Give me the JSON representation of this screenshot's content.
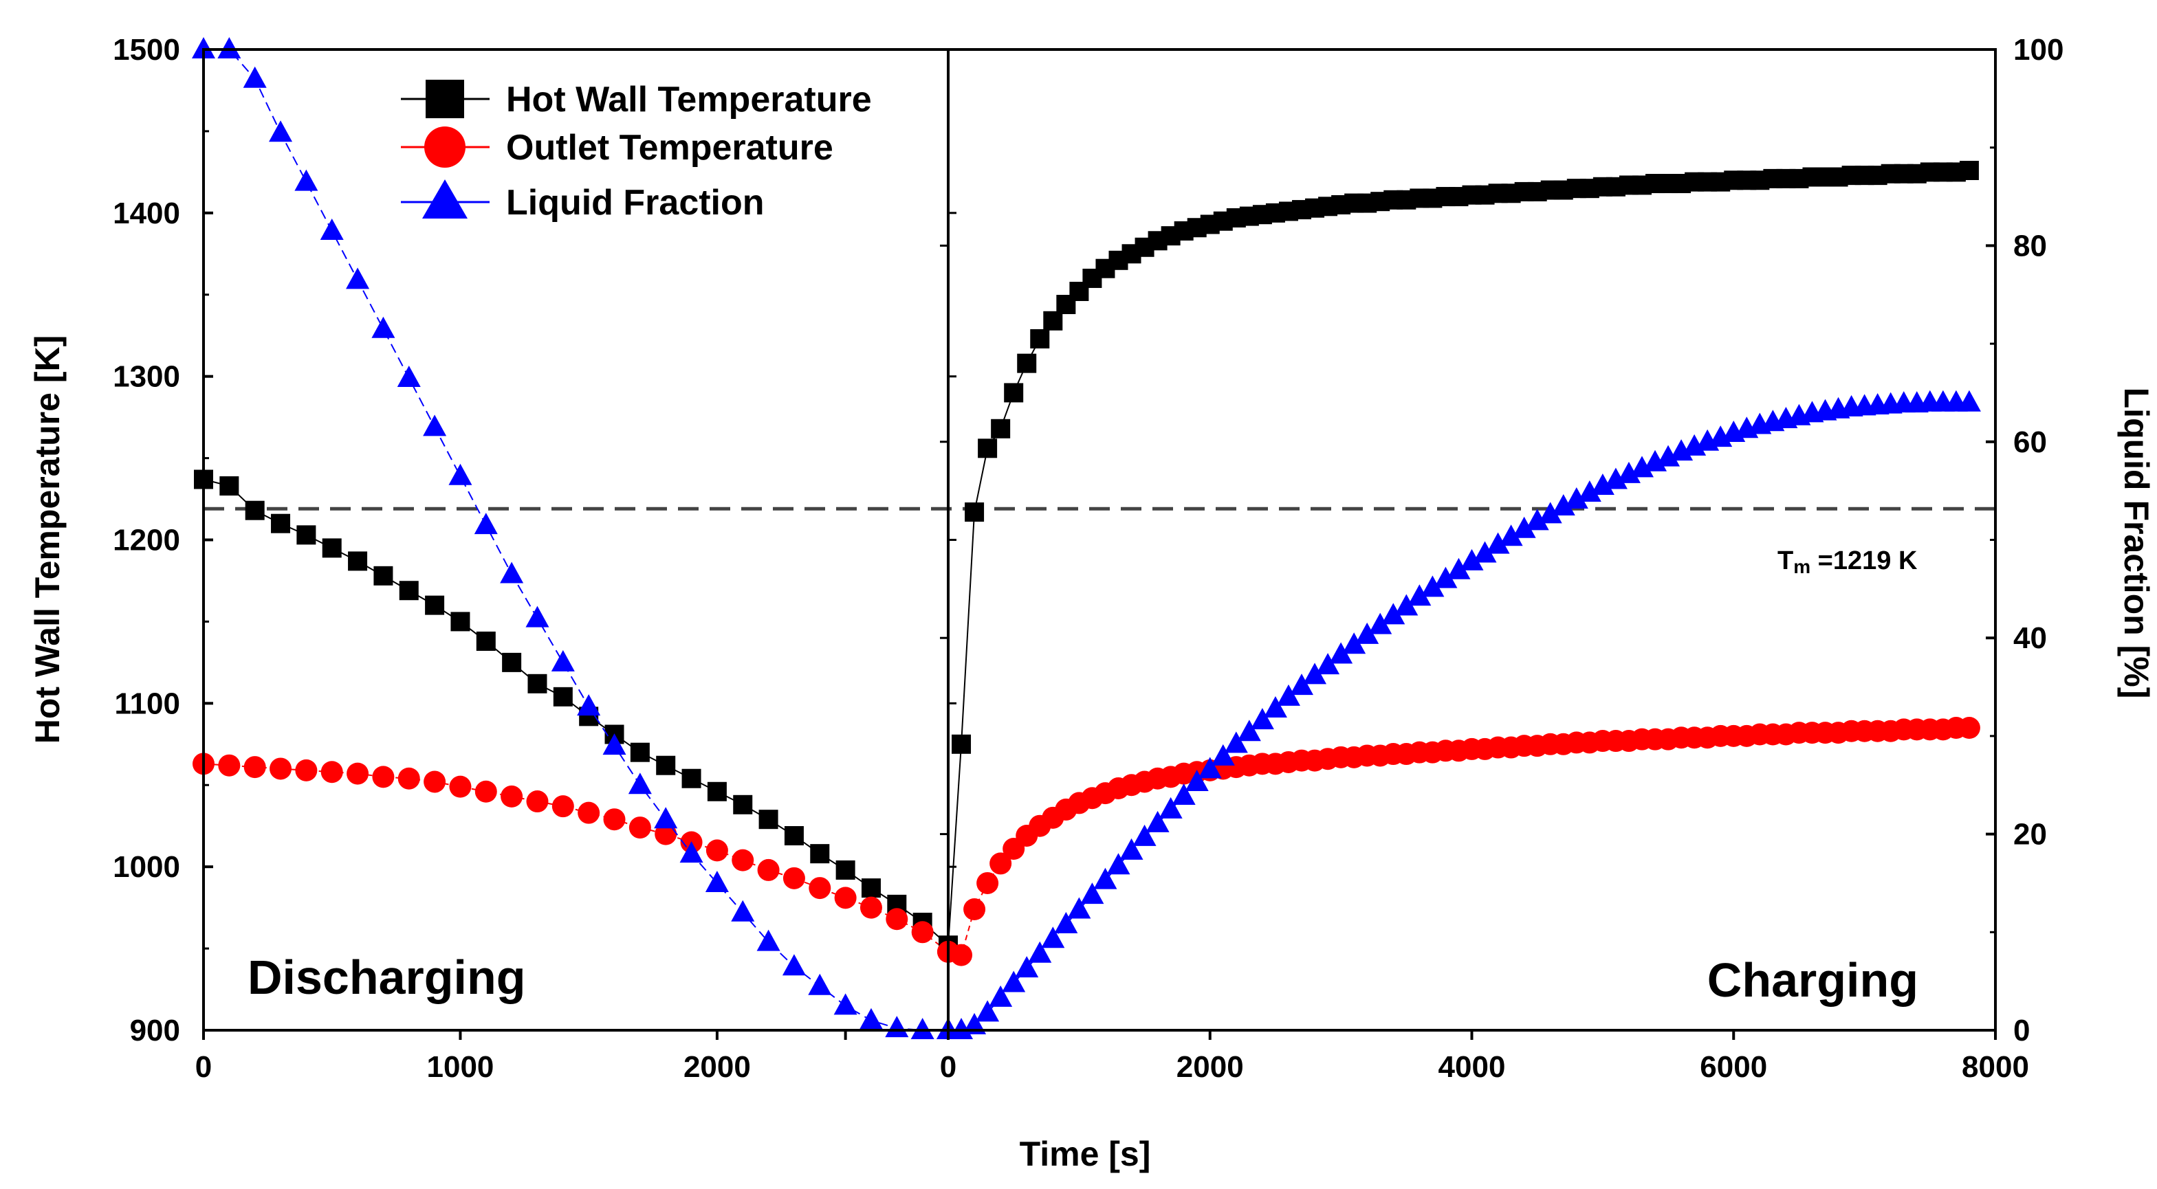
{
  "chart_data": {
    "type": "line",
    "title": "",
    "xlabel": "Time [s]",
    "ylabel": "Hot Wall Temperature [K]",
    "y2label": "Liquid Fraction [%]",
    "ylim": [
      900,
      1500
    ],
    "y2lim": [
      0,
      100
    ],
    "grid": false,
    "legend_position": "top-left",
    "y_ticks": [
      "900",
      "1000",
      "1100",
      "1200",
      "1300",
      "1400",
      "1500"
    ],
    "y2_ticks": [
      "0",
      "20",
      "40",
      "60",
      "80",
      "100"
    ],
    "reference_line": {
      "value": 1219,
      "style": "dashed",
      "label_prefix": "T",
      "label_sub": "m",
      "label_suffix": " =1219 K"
    },
    "panels": [
      {
        "name": "Discharging",
        "label": "Discharging",
        "xlim": [
          0,
          2900
        ],
        "x_ticks": [
          {
            "value": 0,
            "label": "0"
          },
          {
            "value": 1000,
            "label": "1000"
          },
          {
            "value": 2000,
            "label": "2000"
          },
          {
            "value": 2500,
            "label": ""
          }
        ],
        "series": [
          {
            "name": "Hot Wall Temperature",
            "color": "#000000",
            "marker": "square",
            "axis": "left",
            "x": [
              0,
              100,
              200,
              300,
              400,
              500,
              600,
              700,
              800,
              900,
              1000,
              1100,
              1200,
              1300,
              1400,
              1500,
              1600,
              1700,
              1800,
              1900,
              2000,
              2100,
              2200,
              2300,
              2400,
              2500,
              2600,
              2700,
              2800,
              2900
            ],
            "y": [
              1237,
              1233,
              1218,
              1210,
              1203,
              1195,
              1187,
              1178,
              1169,
              1160,
              1150,
              1138,
              1125,
              1112,
              1104,
              1092,
              1081,
              1070,
              1062,
              1054,
              1046,
              1038,
              1029,
              1019,
              1008,
              998,
              987,
              977,
              966,
              952
            ]
          },
          {
            "name": "Outlet Temperature",
            "color": "#ff0000",
            "marker": "circle",
            "axis": "left",
            "x": [
              0,
              100,
              200,
              300,
              400,
              500,
              600,
              700,
              800,
              900,
              1000,
              1100,
              1200,
              1300,
              1400,
              1500,
              1600,
              1700,
              1800,
              1900,
              2000,
              2100,
              2200,
              2300,
              2400,
              2500,
              2600,
              2700,
              2800,
              2900
            ],
            "y": [
              1063,
              1062,
              1061,
              1060,
              1059,
              1058,
              1057,
              1055,
              1054,
              1052,
              1049,
              1046,
              1043,
              1040,
              1037,
              1033,
              1029,
              1024,
              1020,
              1015,
              1010,
              1004,
              998,
              993,
              987,
              981,
              975,
              968,
              960,
              948
            ]
          },
          {
            "name": "Liquid Fraction",
            "color": "#0000ff",
            "marker": "triangle",
            "axis": "right",
            "x": [
              0,
              100,
              200,
              300,
              400,
              500,
              600,
              700,
              800,
              900,
              1000,
              1100,
              1200,
              1300,
              1400,
              1500,
              1600,
              1700,
              1800,
              1900,
              2000,
              2100,
              2200,
              2300,
              2400,
              2500,
              2600,
              2700,
              2800,
              2900
            ],
            "y": [
              100,
              100,
              97,
              91.5,
              86.5,
              81.5,
              76.5,
              71.5,
              66.5,
              61.5,
              56.5,
              51.5,
              46.5,
              42,
              37.5,
              33,
              29,
              25,
              21.5,
              18,
              15,
              12,
              9,
              6.5,
              4.5,
              2.5,
              1,
              0.2,
              0,
              0
            ]
          }
        ]
      },
      {
        "name": "Charging",
        "label": "Charging",
        "xlim": [
          0,
          8000
        ],
        "x_ticks": [
          {
            "value": 0,
            "label": "0"
          },
          {
            "value": 2000,
            "label": "2000"
          },
          {
            "value": 4000,
            "label": "4000"
          },
          {
            "value": 6000,
            "label": "6000"
          },
          {
            "value": 8000,
            "label": "8000"
          }
        ],
        "series": [
          {
            "name": "Hot Wall Temperature",
            "color": "#000000",
            "marker": "square",
            "axis": "left",
            "x": [
              0,
              100,
              200,
              300,
              400,
              500,
              600,
              700,
              800,
              900,
              1000,
              1100,
              1200,
              1300,
              1400,
              1500,
              1600,
              1700,
              1800,
              1900,
              2000,
              2100,
              2200,
              2300,
              2400,
              2500,
              2600,
              2700,
              2800,
              2900,
              3000,
              3100,
              3200,
              3300,
              3400,
              3500,
              3600,
              3700,
              3800,
              3900,
              4000,
              4100,
              4200,
              4300,
              4400,
              4500,
              4600,
              4700,
              4800,
              4900,
              5000,
              5100,
              5200,
              5300,
              5400,
              5500,
              5600,
              5700,
              5800,
              5900,
              6000,
              6100,
              6200,
              6300,
              6400,
              6500,
              6600,
              6700,
              6800,
              6900,
              7000,
              7100,
              7200,
              7300,
              7400,
              7500,
              7600,
              7700,
              7800
            ],
            "y": [
              952,
              1075,
              1217,
              1256,
              1268,
              1290,
              1308,
              1323,
              1334,
              1344,
              1352,
              1360,
              1366,
              1371,
              1375,
              1379,
              1383,
              1386,
              1389,
              1391,
              1393,
              1395,
              1397,
              1398,
              1399,
              1400,
              1401,
              1402,
              1403,
              1404,
              1405,
              1406,
              1406,
              1407,
              1408,
              1408,
              1409,
              1409,
              1410,
              1410,
              1411,
              1411,
              1412,
              1412,
              1413,
              1413,
              1414,
              1414,
              1415,
              1415,
              1416,
              1416,
              1417,
              1417,
              1418,
              1418,
              1418,
              1419,
              1419,
              1419,
              1420,
              1420,
              1420,
              1421,
              1421,
              1421,
              1422,
              1422,
              1422,
              1423,
              1423,
              1423,
              1424,
              1424,
              1424,
              1425,
              1425,
              1425,
              1426
            ]
          },
          {
            "name": "Outlet Temperature",
            "color": "#ff0000",
            "marker": "circle",
            "axis": "left",
            "x": [
              0,
              100,
              200,
              300,
              400,
              500,
              600,
              700,
              800,
              900,
              1000,
              1100,
              1200,
              1300,
              1400,
              1500,
              1600,
              1700,
              1800,
              1900,
              2000,
              2100,
              2200,
              2300,
              2400,
              2500,
              2600,
              2700,
              2800,
              2900,
              3000,
              3100,
              3200,
              3300,
              3400,
              3500,
              3600,
              3700,
              3800,
              3900,
              4000,
              4100,
              4200,
              4300,
              4400,
              4500,
              4600,
              4700,
              4800,
              4900,
              5000,
              5100,
              5200,
              5300,
              5400,
              5500,
              5600,
              5700,
              5800,
              5900,
              6000,
              6100,
              6200,
              6300,
              6400,
              6500,
              6600,
              6700,
              6800,
              6900,
              7000,
              7100,
              7200,
              7300,
              7400,
              7500,
              7600,
              7700,
              7800
            ],
            "y": [
              948,
              946,
              974,
              990,
              1002,
              1011,
              1019,
              1025,
              1030,
              1035,
              1039,
              1042,
              1045,
              1048,
              1050,
              1052,
              1054,
              1055,
              1057,
              1058,
              1059,
              1060,
              1061,
              1062,
              1063,
              1063,
              1064,
              1065,
              1065,
              1066,
              1067,
              1067,
              1068,
              1068,
              1069,
              1069,
              1070,
              1070,
              1071,
              1071,
              1072,
              1072,
              1073,
              1073,
              1074,
              1074,
              1075,
              1075,
              1076,
              1076,
              1077,
              1077,
              1077,
              1078,
              1078,
              1078,
              1079,
              1079,
              1079,
              1080,
              1080,
              1080,
              1081,
              1081,
              1081,
              1082,
              1082,
              1082,
              1082,
              1083,
              1083,
              1083,
              1083,
              1084,
              1084,
              1084,
              1084,
              1085,
              1085
            ]
          },
          {
            "name": "Liquid Fraction",
            "color": "#0000ff",
            "marker": "triangle",
            "axis": "right",
            "x": [
              0,
              100,
              200,
              300,
              400,
              500,
              600,
              700,
              800,
              900,
              1000,
              1100,
              1200,
              1300,
              1400,
              1500,
              1600,
              1700,
              1800,
              1900,
              2000,
              2100,
              2200,
              2300,
              2400,
              2500,
              2600,
              2700,
              2800,
              2900,
              3000,
              3100,
              3200,
              3300,
              3400,
              3500,
              3600,
              3700,
              3800,
              3900,
              4000,
              4100,
              4200,
              4300,
              4400,
              4500,
              4600,
              4700,
              4800,
              4900,
              5000,
              5100,
              5200,
              5300,
              5400,
              5500,
              5600,
              5700,
              5800,
              5900,
              6000,
              6100,
              6200,
              6300,
              6400,
              6500,
              6600,
              6700,
              6800,
              6900,
              7000,
              7100,
              7200,
              7300,
              7400,
              7500,
              7600,
              7700,
              7800
            ],
            "y": [
              0,
              0,
              0.5,
              1.8,
              3.3,
              4.8,
              6.3,
              7.8,
              9.3,
              10.8,
              12.3,
              13.8,
              15.3,
              16.8,
              18.3,
              19.7,
              21.1,
              22.5,
              23.9,
              25.3,
              26.6,
              27.9,
              29.2,
              30.4,
              31.6,
              32.8,
              34.0,
              35.1,
              36.2,
              37.2,
              38.3,
              39.3,
              40.3,
              41.3,
              42.3,
              43.2,
              44.2,
              45.1,
              46.0,
              46.9,
              47.8,
              48.6,
              49.5,
              50.3,
              51.1,
              51.9,
              52.6,
              53.4,
              54.1,
              54.8,
              55.5,
              56.1,
              56.7,
              57.3,
              57.9,
              58.4,
              59.0,
              59.5,
              60.0,
              60.4,
              60.9,
              61.3,
              61.7,
              62.0,
              62.3,
              62.6,
              62.9,
              63.1,
              63.3,
              63.5,
              63.6,
              63.7,
              63.8,
              63.9,
              63.9,
              64.0,
              64.0,
              64.0,
              64.0
            ]
          }
        ]
      }
    ]
  }
}
